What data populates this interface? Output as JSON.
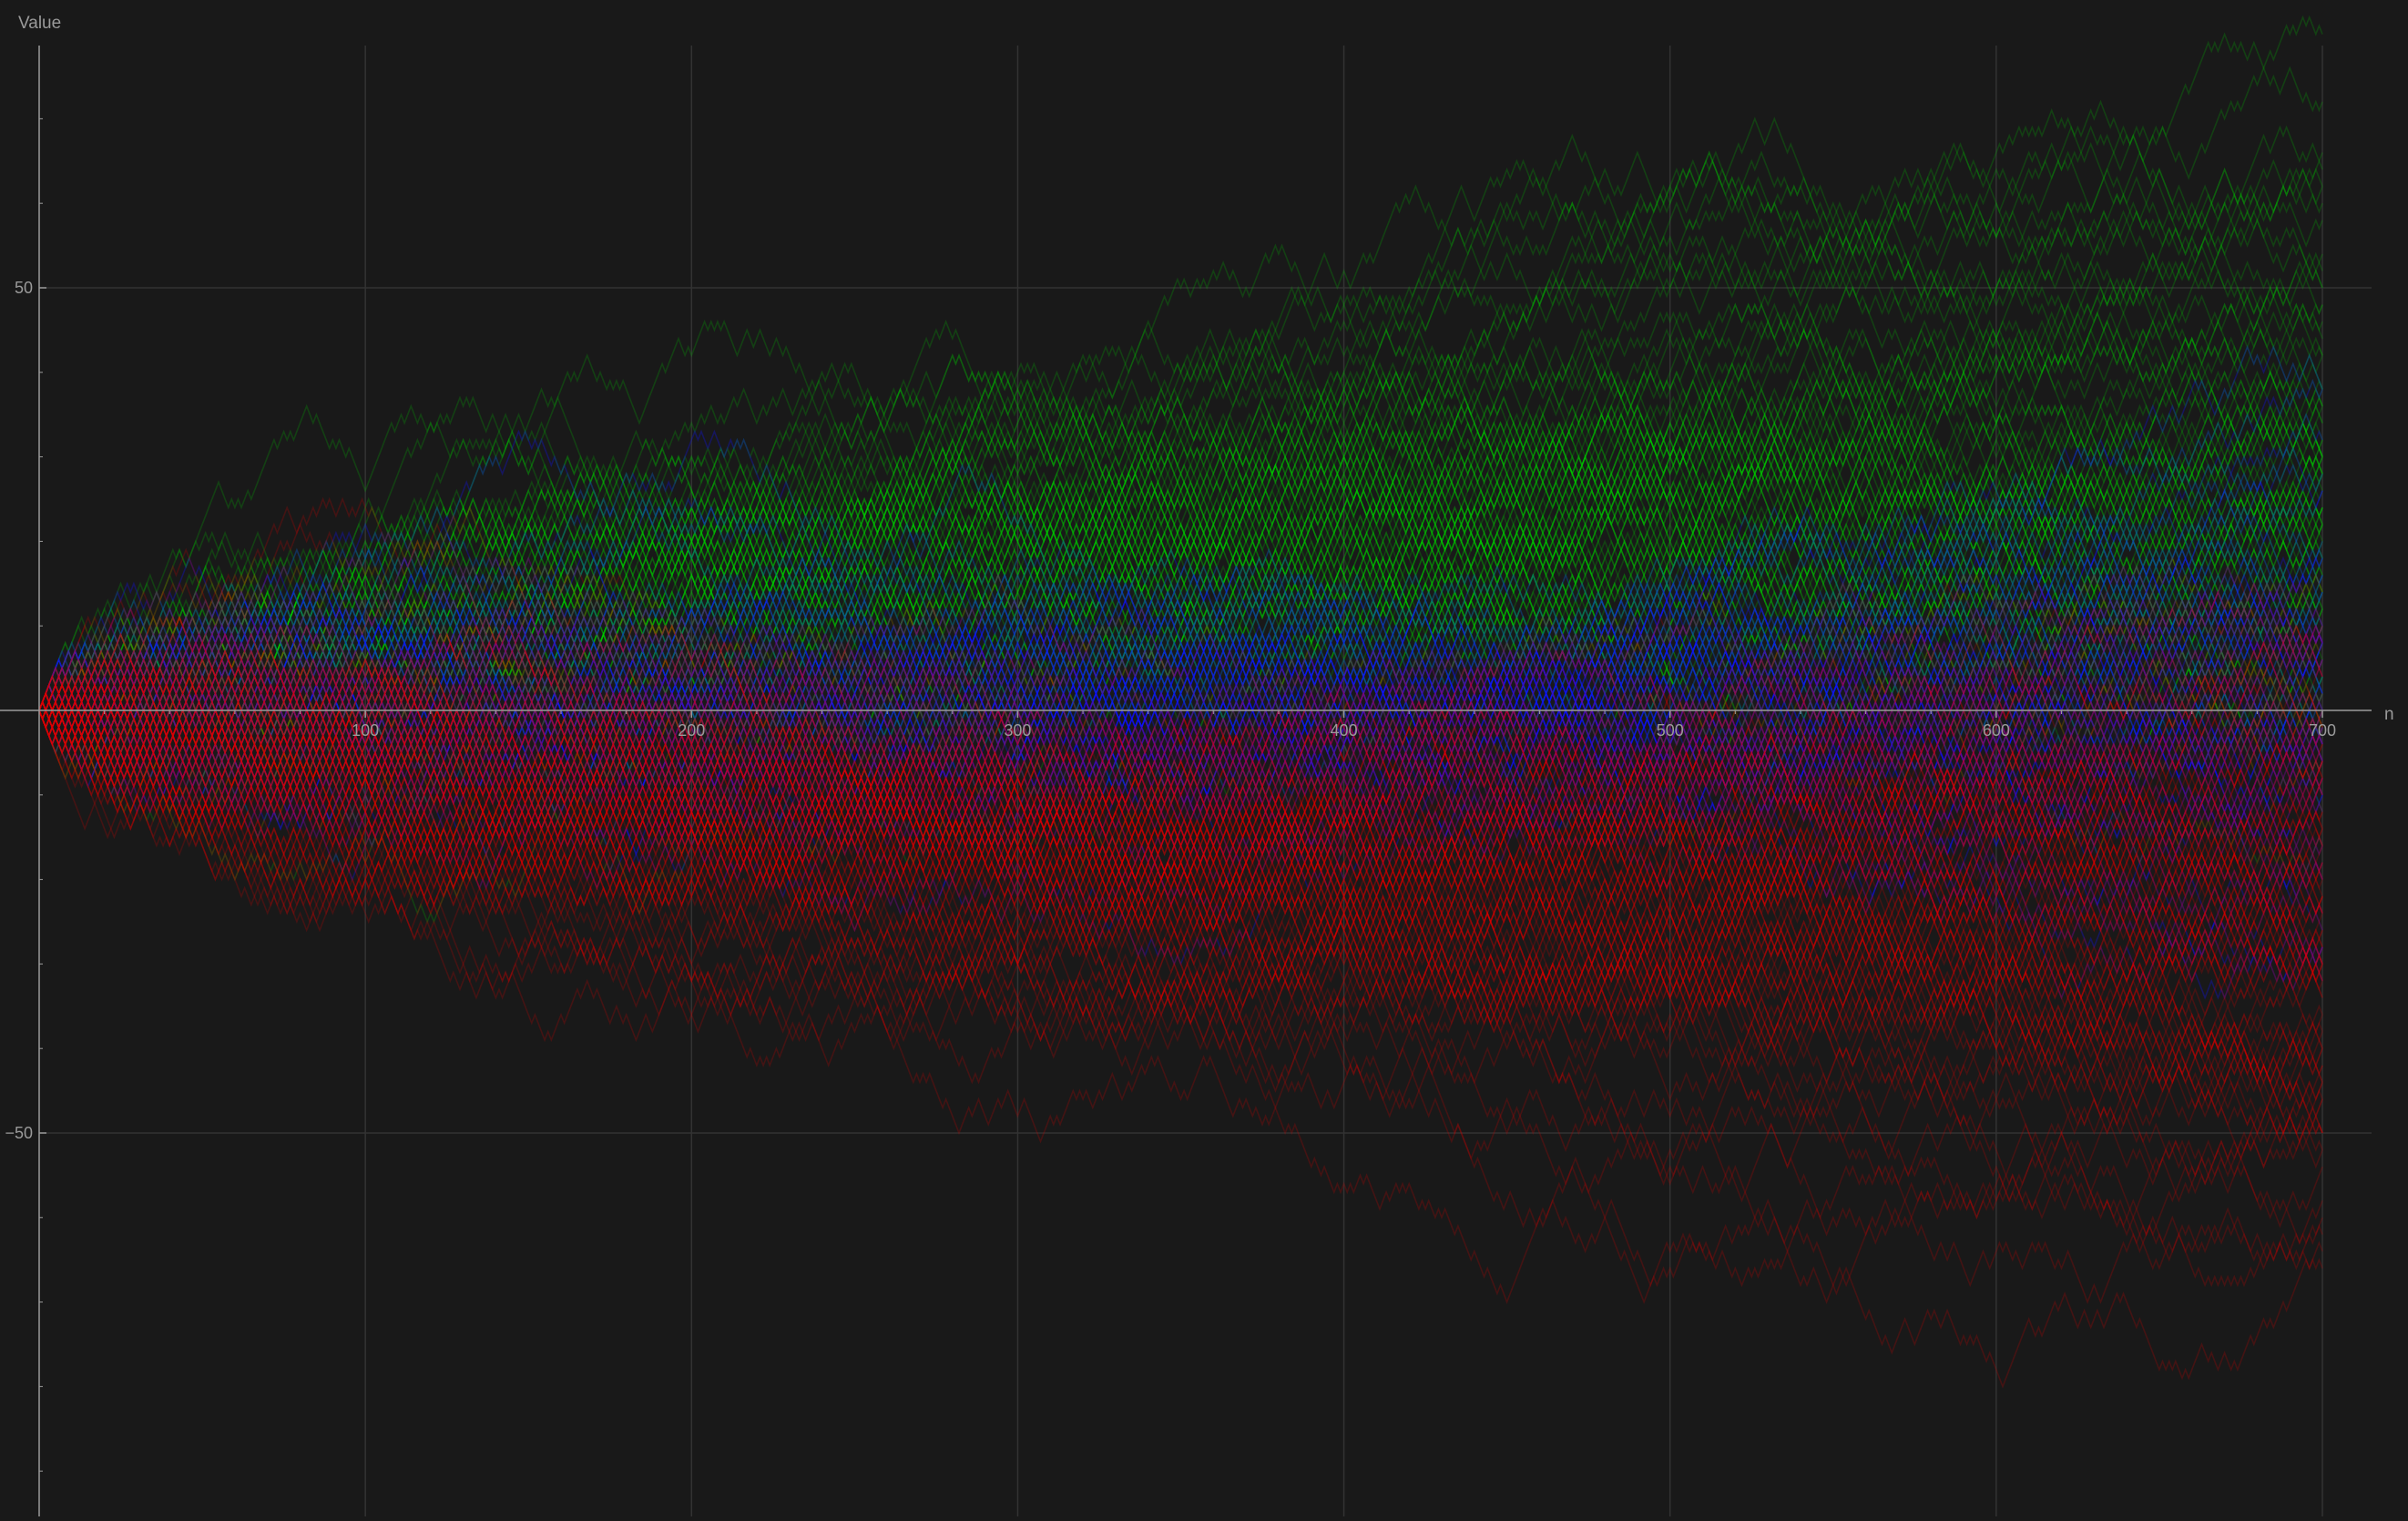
{
  "chart_data": {
    "type": "line",
    "title": "",
    "xlabel": "n",
    "ylabel": "Value",
    "xlim": [
      0,
      720
    ],
    "ylim": [
      -95,
      79
    ],
    "x_ticks": [
      100,
      200,
      300,
      400,
      500,
      600,
      700
    ],
    "x_tick_labels": [
      "100",
      "200",
      "300",
      "400",
      "500",
      "600",
      "700"
    ],
    "y_ticks": [
      50,
      -50
    ],
    "y_tick_labels": [
      "50",
      "−50"
    ],
    "grid": true,
    "legend": "none",
    "series_groups": [
      {
        "color": "#00cc00",
        "description_shown": "upper paths"
      },
      {
        "color": "#1010ff",
        "description_shown": "middle paths"
      },
      {
        "color": "#e00000",
        "description_shown": "lower paths"
      }
    ],
    "representative_endpoints": {
      "n": 700,
      "max_value": 70,
      "min_value": -86
    }
  },
  "colors": {
    "background": "#191919",
    "grid": "#333333",
    "axis": "#9a9a9a",
    "green": "#00cc00",
    "blue": "#1010ff",
    "red": "#e00000"
  }
}
